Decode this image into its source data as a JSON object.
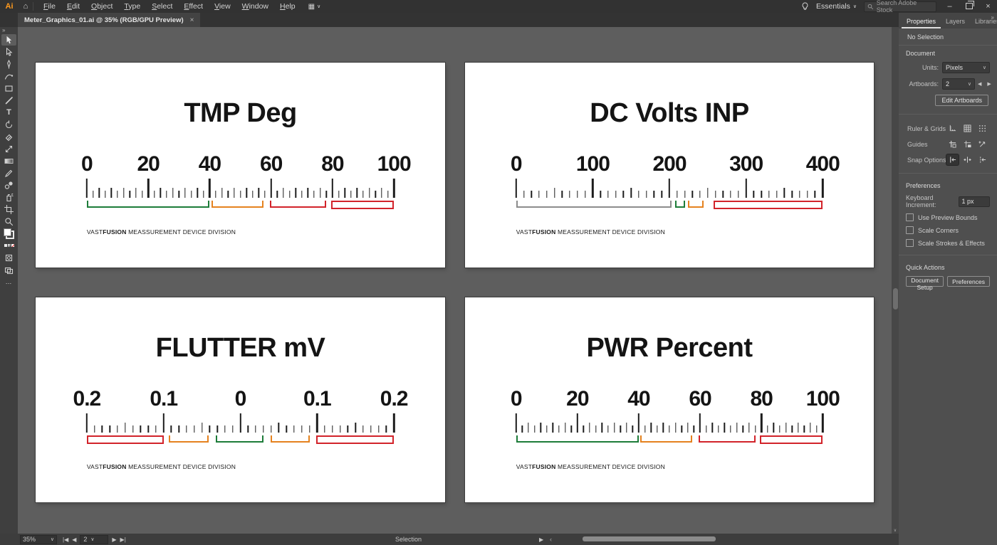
{
  "app": {
    "logo": "Ai",
    "menus": [
      "File",
      "Edit",
      "Object",
      "Type",
      "Select",
      "Effect",
      "View",
      "Window",
      "Help"
    ],
    "workspace": "Essentials",
    "search_placeholder": "Search Adobe Stock",
    "doc_tab": "Meter_Graphics_01.ai @ 35% (RGB/GPU Preview)"
  },
  "icons": {
    "home": "⌂",
    "workspace_grid": "▦",
    "dropdown_arrow": "∨",
    "toolbar_expand": "»",
    "panel_collapse": "»",
    "prev": "◀",
    "next": "▶",
    "first": "|◀",
    "last": "▶|",
    "flyout": "▶",
    "back": "‹",
    "minimize": "–",
    "close": "×",
    "tab_close": "×",
    "scroll_down": "∨"
  },
  "toolbar": {
    "tools": [
      {
        "name": "selection-tool",
        "active": true
      },
      {
        "name": "direct-selection-tool"
      },
      {
        "name": "pen-tool"
      },
      {
        "name": "curvature-tool"
      },
      {
        "name": "rectangle-tool"
      },
      {
        "name": "paintbrush-tool"
      },
      {
        "name": "type-tool"
      },
      {
        "name": "rotate-tool"
      },
      {
        "name": "eraser-tool"
      },
      {
        "name": "scale-tool"
      },
      {
        "name": "gradient-tool"
      },
      {
        "name": "pencil-tool"
      },
      {
        "name": "blend-tool"
      },
      {
        "name": "symbol-sprayer-tool"
      },
      {
        "name": "artboard-tool"
      },
      {
        "name": "zoom-tool"
      },
      {
        "name": "fill-stroke-swatches"
      },
      {
        "name": "color-mode-row"
      },
      {
        "name": "draw-mode"
      },
      {
        "name": "screen-mode"
      },
      {
        "name": "edit-toolbar"
      }
    ]
  },
  "panel": {
    "tabs": [
      "Properties",
      "Layers",
      "Libraries"
    ],
    "no_selection": "No Selection",
    "document_section": {
      "title": "Document",
      "units_label": "Units:",
      "units_value": "Pixels",
      "artboards_label": "Artboards:",
      "artboards_value": "2",
      "edit_artboards": "Edit Artboards"
    },
    "icon_rows": [
      {
        "label": "Ruler & Grids",
        "name": "ruler-grids",
        "icons": [
          {
            "name": "ruler-icon"
          },
          {
            "name": "grid-icon"
          },
          {
            "name": "dot-grid-icon"
          }
        ]
      },
      {
        "label": "Guides",
        "name": "guides",
        "icons": [
          {
            "name": "guides-icon"
          },
          {
            "name": "guides-lock-icon"
          },
          {
            "name": "guides-move-icon"
          }
        ]
      },
      {
        "label": "Snap Options",
        "name": "snap-options",
        "icons": [
          {
            "name": "snap-point-icon",
            "active": true
          },
          {
            "name": "snap-grid-icon"
          },
          {
            "name": "snap-pixel-icon"
          }
        ]
      }
    ],
    "preferences_section": {
      "title": "Preferences",
      "keyboard_increment_label": "Keyboard Increment:",
      "keyboard_increment_value": "1 px",
      "checkboxes": [
        "Use Preview Bounds",
        "Scale Corners",
        "Scale Strokes & Effects"
      ]
    },
    "quick_actions": {
      "title": "Quick Actions",
      "buttons": [
        "Document Setup",
        "Preferences"
      ]
    }
  },
  "statusbar": {
    "zoom": "35%",
    "nav_value": "2",
    "tool_label": "Selection"
  },
  "colors": {
    "green": "#1d7c39",
    "orange": "#e5821f",
    "red": "#d2232a",
    "gray": "#8c8c8c"
  },
  "meter_footer": {
    "brand_a": "VAST",
    "brand_b": "FUSION",
    "rest": " MEASSUREMENT DEVICE DIVISION"
  },
  "meters": [
    {
      "title": "TMP Deg",
      "scale": {
        "labels": [
          "0",
          "20",
          "40",
          "60",
          "80",
          "100"
        ],
        "ticks": 51,
        "major_every": 10,
        "medium_every": 2
      },
      "ranges": [
        {
          "color": "green",
          "style": "bracket",
          "start": 0.0,
          "end": 0.4
        },
        {
          "color": "orange",
          "style": "bracket",
          "start": 0.405,
          "end": 0.575
        },
        {
          "color": "red",
          "style": "bracket",
          "start": 0.596,
          "end": 0.78
        },
        {
          "color": "red",
          "style": "box",
          "start": 0.796,
          "end": 1.0
        }
      ]
    },
    {
      "title": "DC Volts INP",
      "scale": {
        "labels": [
          "0",
          "100",
          "200",
          "300",
          "400"
        ],
        "ticks": 41,
        "major_every": 10,
        "medium_every": 5
      },
      "ranges": [
        {
          "color": "gray",
          "style": "bracket",
          "start": 0.0,
          "end": 0.506
        },
        {
          "color": "green",
          "style": "bracket",
          "start": 0.518,
          "end": 0.552
        },
        {
          "color": "orange",
          "style": "bracket",
          "start": 0.56,
          "end": 0.612
        },
        {
          "color": "red",
          "style": "box",
          "start": 0.643,
          "end": 1.0
        }
      ]
    },
    {
      "title": "FLUTTER mV",
      "scale": {
        "labels": [
          "0.2",
          "0.1",
          "0",
          "0.1",
          "0.2"
        ],
        "ticks": 41,
        "major_every": 10,
        "medium_every": 5
      },
      "ranges": [
        {
          "color": "red",
          "style": "box",
          "start": 0.0,
          "end": 0.25
        },
        {
          "color": "orange",
          "style": "bracket",
          "start": 0.268,
          "end": 0.397
        },
        {
          "color": "green",
          "style": "bracket",
          "start": 0.421,
          "end": 0.576
        },
        {
          "color": "orange",
          "style": "bracket",
          "start": 0.599,
          "end": 0.727
        },
        {
          "color": "red",
          "style": "box",
          "start": 0.748,
          "end": 1.0
        }
      ]
    },
    {
      "title": "PWR Percent",
      "scale": {
        "labels": [
          "0",
          "20",
          "40",
          "60",
          "80",
          "100"
        ],
        "ticks": 51,
        "major_every": 10,
        "medium_every": 2
      },
      "ranges": [
        {
          "color": "green",
          "style": "bracket",
          "start": 0.0,
          "end": 0.4
        },
        {
          "color": "orange",
          "style": "bracket",
          "start": 0.405,
          "end": 0.575
        },
        {
          "color": "red",
          "style": "bracket",
          "start": 0.596,
          "end": 0.78
        },
        {
          "color": "red",
          "style": "box",
          "start": 0.796,
          "end": 1.0
        }
      ]
    }
  ]
}
